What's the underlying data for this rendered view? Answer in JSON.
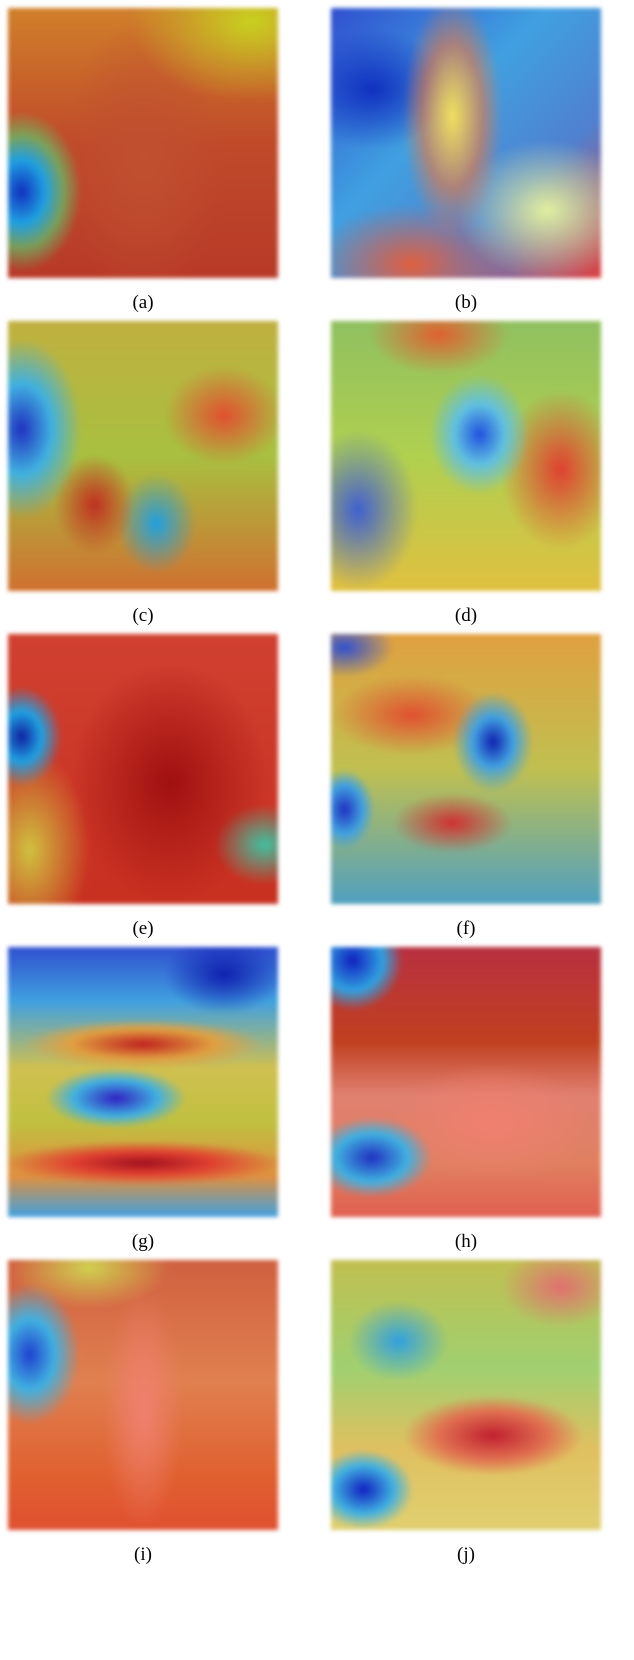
{
  "figure": {
    "panels": [
      {
        "caption": "(a)"
      },
      {
        "caption": "(b)"
      },
      {
        "caption": "(c)"
      },
      {
        "caption": "(d)"
      },
      {
        "caption": "(e)"
      },
      {
        "caption": "(f)"
      },
      {
        "caption": "(g)"
      },
      {
        "caption": "(h)"
      },
      {
        "caption": "(i)"
      },
      {
        "caption": "(j)"
      }
    ]
  }
}
